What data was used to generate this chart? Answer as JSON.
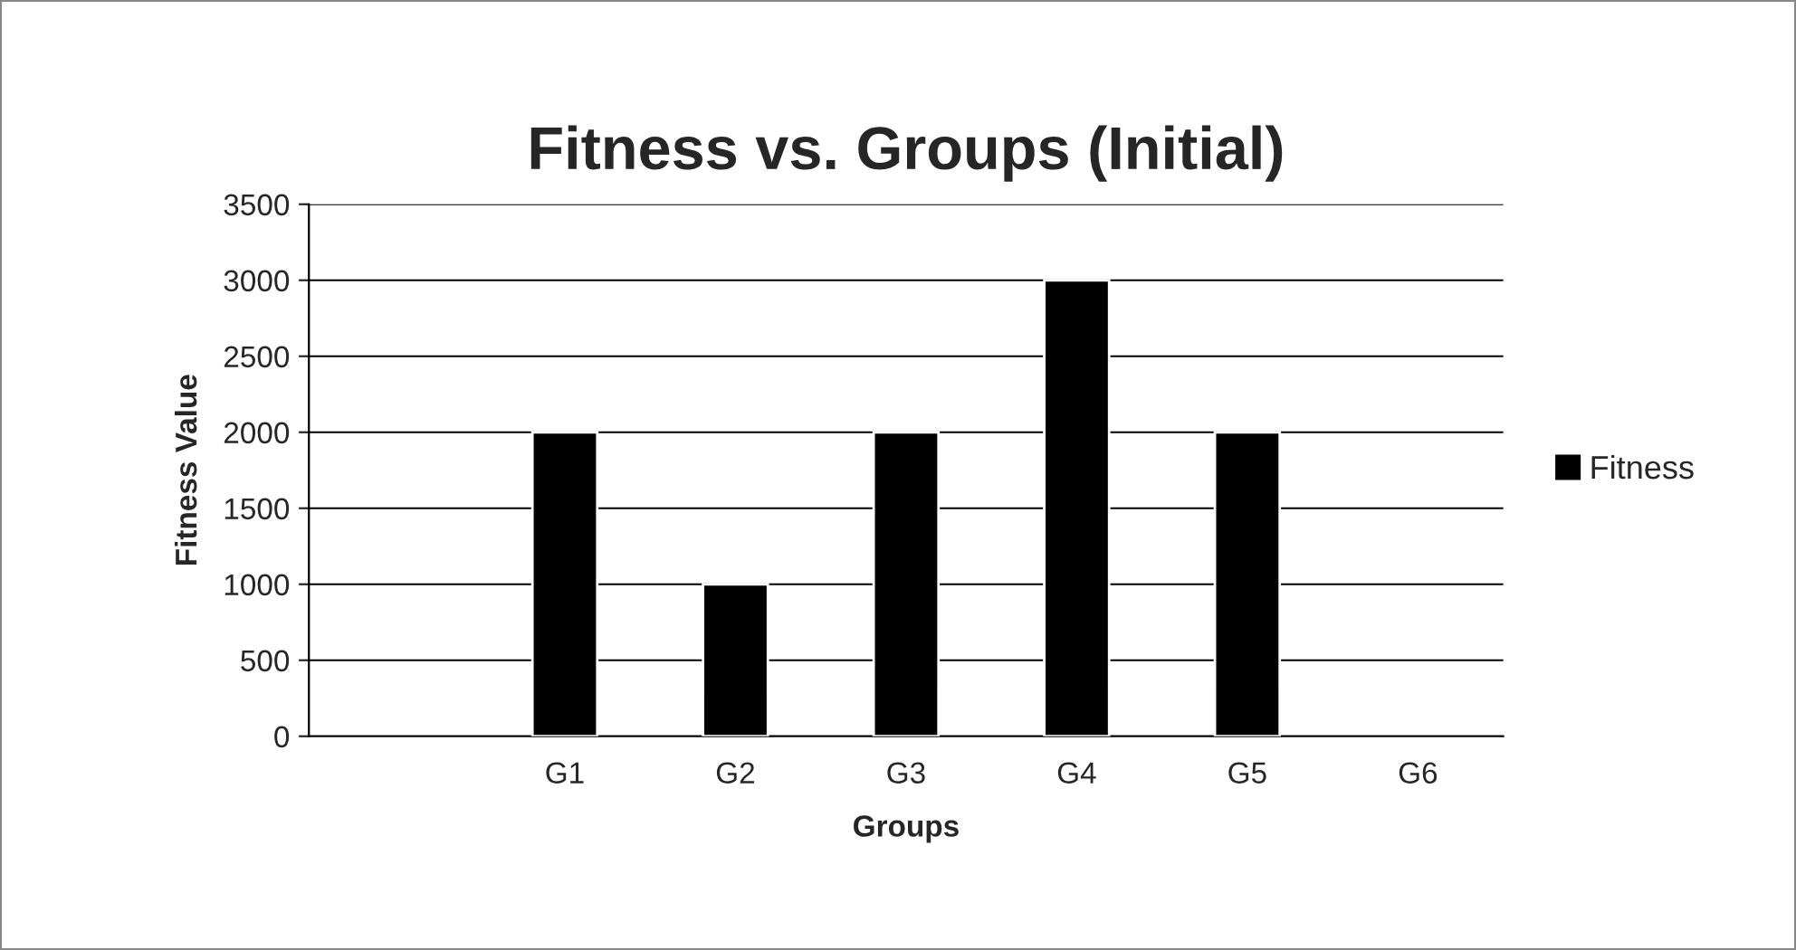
{
  "chart_data": {
    "type": "bar",
    "title": "Fitness vs. Groups (Initial)",
    "xlabel": "Groups",
    "ylabel": "Fitness Value",
    "categories": [
      null,
      "G1",
      "G2",
      "G3",
      "G4",
      "G5",
      "G6"
    ],
    "series": [
      {
        "name": "Fitness",
        "color": "#000000",
        "values": [
          null,
          2000,
          1000,
          2000,
          3000,
          2000,
          null
        ]
      }
    ],
    "ylim": [
      0,
      3500
    ],
    "yticks": [
      0,
      500,
      1000,
      1500,
      2000,
      2500,
      3000,
      3500
    ],
    "grid": "y",
    "legend": "right"
  }
}
